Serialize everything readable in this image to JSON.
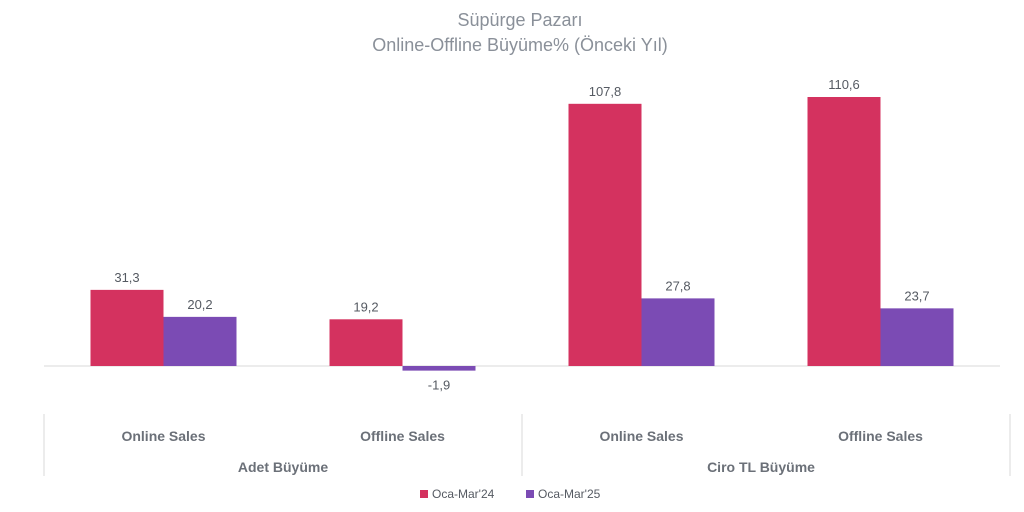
{
  "chart_data": {
    "type": "bar",
    "title": "Süpürge Pazarı",
    "subtitle": "Online-Offline Büyüme% (Önceki Yıl)",
    "groups": [
      {
        "label": "Adet Büyüme",
        "categories": [
          "Online Sales",
          "Offline Sales"
        ]
      },
      {
        "label": "Ciro TL Büyüme",
        "categories": [
          "Online Sales",
          "Offline Sales"
        ]
      }
    ],
    "categories": [
      "Online Sales",
      "Offline Sales",
      "Online Sales",
      "Offline Sales"
    ],
    "series": [
      {
        "name": "Oca-Mar'24",
        "color": "#d4325f",
        "values": [
          31.3,
          19.2,
          107.8,
          110.6
        ],
        "labels": [
          "31,3",
          "19,2",
          "107,8",
          "110,6"
        ]
      },
      {
        "name": "Oca-Mar'25",
        "color": "#7b4bb4",
        "values": [
          20.2,
          -1.9,
          27.8,
          23.7
        ],
        "labels": [
          "20,2",
          "-1,9",
          "27,8",
          "23,7"
        ]
      }
    ],
    "ylim": [
      -5,
      115
    ],
    "grid": false,
    "legend_position": "bottom-center"
  }
}
